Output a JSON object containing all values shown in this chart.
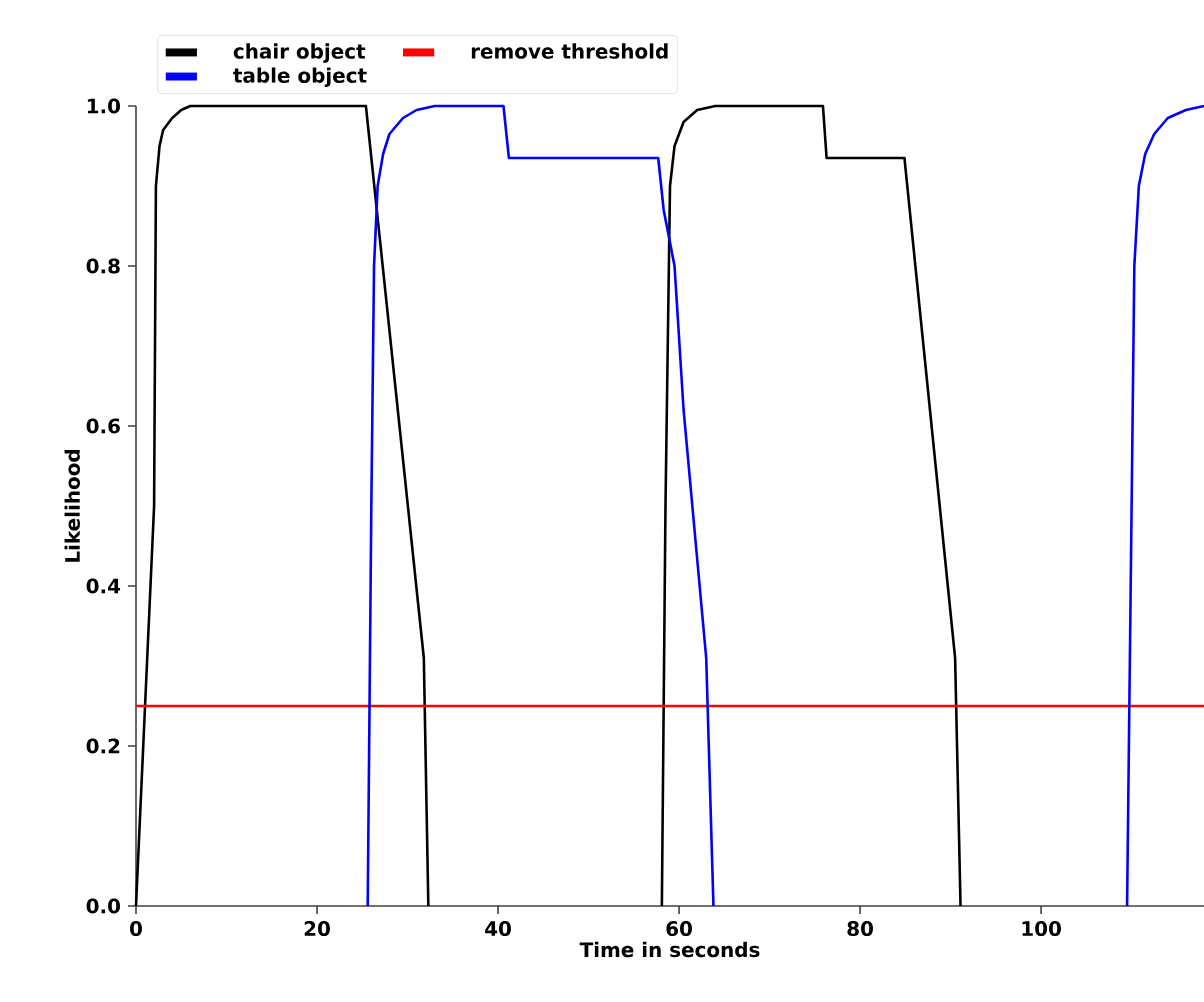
{
  "chart_data": {
    "type": "line",
    "xlabel": "Time in seconds",
    "ylabel": "Likelihood",
    "xlim": [
      0,
      118
    ],
    "ylim": [
      0,
      1
    ],
    "xticks": [
      0,
      20,
      40,
      60,
      80,
      100
    ],
    "yticks": [
      {
        "value": 0,
        "label": "0.0"
      },
      {
        "value": 0.2,
        "label": "0.2"
      },
      {
        "value": 0.4,
        "label": "0.4"
      },
      {
        "value": 0.6,
        "label": "0.6"
      },
      {
        "value": 0.8,
        "label": "0.8"
      },
      {
        "value": 1,
        "label": "1.0"
      }
    ],
    "series": [
      {
        "name": "chair object",
        "color": "#000000",
        "x": [
          0,
          1,
          2,
          2.2,
          2.6,
          3,
          4,
          5,
          6,
          8,
          25.4,
          31.8,
          32.3,
          32.5,
          58.1,
          58.5,
          59,
          59.5,
          60.5,
          62,
          64,
          75.9,
          76.3,
          84.9,
          90.5,
          91.1
        ],
        "values": [
          0,
          0.25,
          0.5,
          0.9,
          0.95,
          0.97,
          0.985,
          0.995,
          1,
          1,
          1,
          0.31,
          0,
          null,
          0,
          0.5,
          0.9,
          0.95,
          0.98,
          0.995,
          1,
          1,
          0.935,
          0.935,
          0.31,
          0
        ]
      },
      {
        "name": "table object",
        "color": "#0000ff",
        "x": [
          25.6,
          26,
          26.3,
          26.7,
          27.3,
          28,
          29.5,
          31,
          33,
          40.6,
          41.2,
          57.7,
          58.3,
          59.5,
          60.5,
          63,
          63.8,
          64,
          109.5,
          110,
          110.3,
          110.8,
          111.5,
          112.5,
          114,
          116,
          118
        ],
        "values": [
          0,
          0.5,
          0.8,
          0.9,
          0.94,
          0.965,
          0.985,
          0.995,
          1,
          1,
          0.935,
          0.935,
          0.87,
          0.8,
          0.62,
          0.31,
          0,
          null,
          0,
          0.5,
          0.8,
          0.9,
          0.94,
          0.965,
          0.985,
          0.995,
          1
        ]
      }
    ],
    "ref_lines": [
      {
        "axis": "y",
        "value": 0.25,
        "label": "remove threshold",
        "color": "#ff0000"
      }
    ],
    "legend": "top",
    "grid": false
  }
}
